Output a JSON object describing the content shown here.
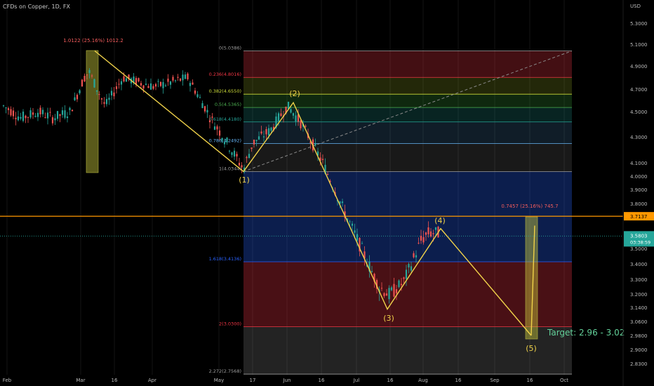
{
  "header": {
    "symbol_title": "CFDs on Copper, 1D, FX"
  },
  "price_axis": {
    "currency": "USD",
    "ticks": [
      "5.3000",
      "5.1000",
      "4.9000",
      "4.7000",
      "4.5000",
      "4.3000",
      "4.1000",
      "4.0000",
      "3.9000",
      "3.8000",
      "3.6000",
      "3.5000",
      "3.4000",
      "3.3000",
      "3.2000",
      "3.1400",
      "3.0600",
      "2.9800",
      "2.9000",
      "2.8300"
    ],
    "horizontal_line_label": "3.7137",
    "last_price_label": "3.5803",
    "countdown_label": "03:38:59"
  },
  "time_axis": {
    "labels": [
      "Feb",
      "Mar",
      "16",
      "Apr",
      "May",
      "17",
      "Jun",
      "16",
      "Jul",
      "16",
      "Aug",
      "16",
      "Sep",
      "16",
      "Oct"
    ]
  },
  "fib_levels": [
    {
      "label": "0(5.0386)",
      "value": 5.0386,
      "color": "#9e9e9e"
    },
    {
      "label": "0.236(4.8016)",
      "value": 4.8016,
      "color": "#f23645"
    },
    {
      "label": "0.382(4.6550)",
      "value": 4.655,
      "color": "#cddc39"
    },
    {
      "label": "0.5(4.5365)",
      "value": 4.5365,
      "color": "#4caf50"
    },
    {
      "label": "0.618(4.4180)",
      "value": 4.418,
      "color": "#26a69a"
    },
    {
      "label": "0.786(4.2492)",
      "value": 4.2492,
      "color": "#64b5f6"
    },
    {
      "label": "1(4.0344)",
      "value": 4.0344,
      "color": "#9e9e9e"
    },
    {
      "label": "1.618(3.4136)",
      "value": 3.4136,
      "color": "#2962ff"
    },
    {
      "label": "2(3.0300)",
      "value": 3.03,
      "color": "#f23645"
    },
    {
      "label": "2.272(2.7568)",
      "value": 2.7568,
      "color": "#9e9e9e"
    }
  ],
  "measure_labels": {
    "left": "1.0122 (25.16%) 1012.2",
    "right": "0.7457 (25.16%) 745.7"
  },
  "wave_labels": [
    "(1)",
    "(2)",
    "(3)",
    "(4)",
    "(5)"
  ],
  "target_label": "Target: 2.96 - 3.02",
  "colors": {
    "up_candle": "#26a69a",
    "down_candle": "#ef5350",
    "wave_line": "#f0d24a",
    "horizontal_line": "#ff9800",
    "last_price_badge": "#26a69a"
  }
}
